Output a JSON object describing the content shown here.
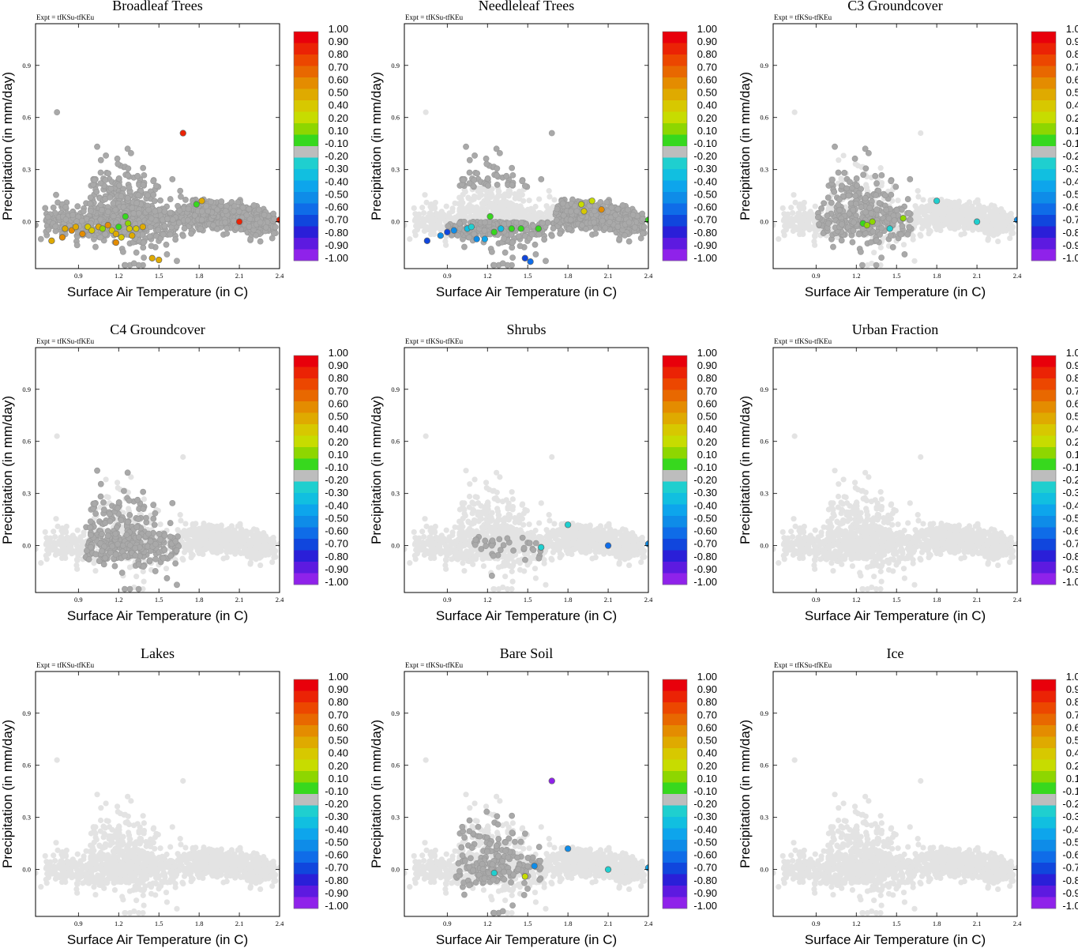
{
  "figure": {
    "expt_label": "Expt = tfKSu-tfKEu"
  },
  "chart_data": {
    "type": "scatter",
    "description_units": {
      "x": "C",
      "y": "mm/day"
    },
    "xlabel": "Surface Air Temperature (in C)",
    "ylabel": "Precipitation (in mm/day)",
    "xlim": [
      0.58,
      2.4
    ],
    "ylim": [
      -0.27,
      1.14
    ],
    "xticks": [
      "0.9",
      "1.2",
      "1.5",
      "1.8",
      "2.1",
      "2.4"
    ],
    "yticks": [
      "0.0",
      "0.3",
      "0.6",
      "0.9"
    ],
    "colorbar": {
      "labels": [
        "1.00",
        "0.90",
        "0.80",
        "0.70",
        "0.60",
        "0.50",
        "0.40",
        "0.20",
        "0.10",
        "-0.10",
        "-0.20",
        "-0.30",
        "-0.40",
        "-0.50",
        "-0.60",
        "-0.70",
        "-0.80",
        "-0.90",
        "-1.00"
      ],
      "colors": [
        "#e8000b",
        "#eb2305",
        "#ec4700",
        "#e86800",
        "#e48c00",
        "#dfaa00",
        "#d7c800",
        "#c7dc00",
        "#8ed600",
        "#37d81e",
        "#bdbdbd",
        "#1fcfcf",
        "#11bfe0",
        "#0da5ec",
        "#0e8ce8",
        "#0f6ce8",
        "#1046dd",
        "#2a1fd8",
        "#5d1ae0",
        "#8f22ea"
      ]
    },
    "panels": [
      {
        "title": "Broadleaf Trees",
        "highlights": [
          [
            0.7,
            -0.11,
            0.5
          ],
          [
            0.78,
            -0.09,
            0.6
          ],
          [
            0.8,
            -0.04,
            0.5
          ],
          [
            0.85,
            -0.05,
            0.6
          ],
          [
            0.88,
            -0.03,
            0.5
          ],
          [
            0.93,
            -0.07,
            0.6
          ],
          [
            0.97,
            -0.03,
            0.4
          ],
          [
            1.0,
            -0.05,
            0.4
          ],
          [
            1.05,
            -0.03,
            0.5
          ],
          [
            1.08,
            -0.04,
            0.2
          ],
          [
            1.12,
            -0.02,
            0.6
          ],
          [
            1.15,
            -0.05,
            0.4
          ],
          [
            1.18,
            -0.07,
            0.5
          ],
          [
            1.2,
            -0.03,
            0.1
          ],
          [
            1.22,
            -0.09,
            0.4
          ],
          [
            1.25,
            0.03,
            0.1
          ],
          [
            1.27,
            -0.01,
            0.2
          ],
          [
            1.28,
            -0.04,
            0.4
          ],
          [
            1.3,
            -0.08,
            0.5
          ],
          [
            1.33,
            -0.04,
            0.4
          ],
          [
            1.38,
            -0.03,
            0.5
          ],
          [
            1.45,
            -0.21,
            0.5
          ],
          [
            1.5,
            -0.22,
            0.5
          ],
          [
            1.18,
            -0.12,
            0.6
          ],
          [
            1.68,
            0.51,
            0.9
          ],
          [
            1.78,
            0.1,
            0.1
          ],
          [
            1.82,
            0.12,
            0.5
          ],
          [
            2.1,
            0.0,
            0.9
          ],
          [
            2.4,
            0.01,
            0.9
          ]
        ]
      },
      {
        "title": "Needleleaf Trees",
        "highlights": [
          [
            0.75,
            -0.11,
            -0.7
          ],
          [
            0.85,
            -0.08,
            -0.5
          ],
          [
            0.9,
            -0.06,
            -0.7
          ],
          [
            0.95,
            -0.05,
            -0.5
          ],
          [
            1.05,
            -0.04,
            -0.3
          ],
          [
            1.08,
            -0.03,
            -0.2
          ],
          [
            1.12,
            -0.1,
            -0.5
          ],
          [
            1.18,
            -0.1,
            -0.4
          ],
          [
            1.22,
            0.03,
            0.1
          ],
          [
            1.25,
            -0.06,
            0.1
          ],
          [
            1.3,
            -0.04,
            -0.3
          ],
          [
            1.38,
            -0.04,
            0.1
          ],
          [
            1.45,
            -0.04,
            0.1
          ],
          [
            1.48,
            -0.21,
            -0.7
          ],
          [
            1.52,
            -0.23,
            -0.6
          ],
          [
            1.58,
            -0.04,
            0.1
          ],
          [
            1.9,
            0.1,
            0.3
          ],
          [
            1.92,
            0.06,
            0.4
          ],
          [
            1.98,
            0.12,
            0.3
          ],
          [
            2.05,
            0.07,
            0.6
          ],
          [
            2.4,
            0.01,
            0.1
          ]
        ]
      },
      {
        "title": "C3 Groundcover",
        "highlights": [
          [
            1.25,
            -0.01,
            0.1
          ],
          [
            1.28,
            -0.02,
            0.2
          ],
          [
            1.32,
            0.0,
            0.2
          ],
          [
            1.45,
            -0.04,
            -0.2
          ],
          [
            1.55,
            0.02,
            0.2
          ],
          [
            1.8,
            0.12,
            -0.2
          ],
          [
            2.1,
            0.0,
            -0.2
          ],
          [
            2.4,
            0.01,
            -0.5
          ]
        ]
      },
      {
        "title": "C4 Groundcover",
        "highlights": []
      },
      {
        "title": "Shrubs",
        "highlights": [
          [
            1.6,
            -0.01,
            -0.2
          ],
          [
            1.8,
            0.12,
            -0.2
          ],
          [
            2.1,
            0.0,
            -0.6
          ],
          [
            2.4,
            0.01,
            -0.5
          ]
        ]
      },
      {
        "title": "Urban Fraction",
        "highlights": []
      },
      {
        "title": "Lakes",
        "highlights": []
      },
      {
        "title": "Bare Soil",
        "highlights": [
          [
            1.25,
            -0.02,
            -0.2
          ],
          [
            1.48,
            -0.04,
            0.3
          ],
          [
            1.55,
            0.02,
            -0.5
          ],
          [
            1.68,
            0.51,
            -1.0
          ],
          [
            1.8,
            0.12,
            -0.5
          ],
          [
            2.1,
            0.0,
            -0.2
          ],
          [
            2.4,
            0.01,
            -0.4
          ]
        ]
      },
      {
        "title": "Ice",
        "highlights": []
      }
    ]
  }
}
